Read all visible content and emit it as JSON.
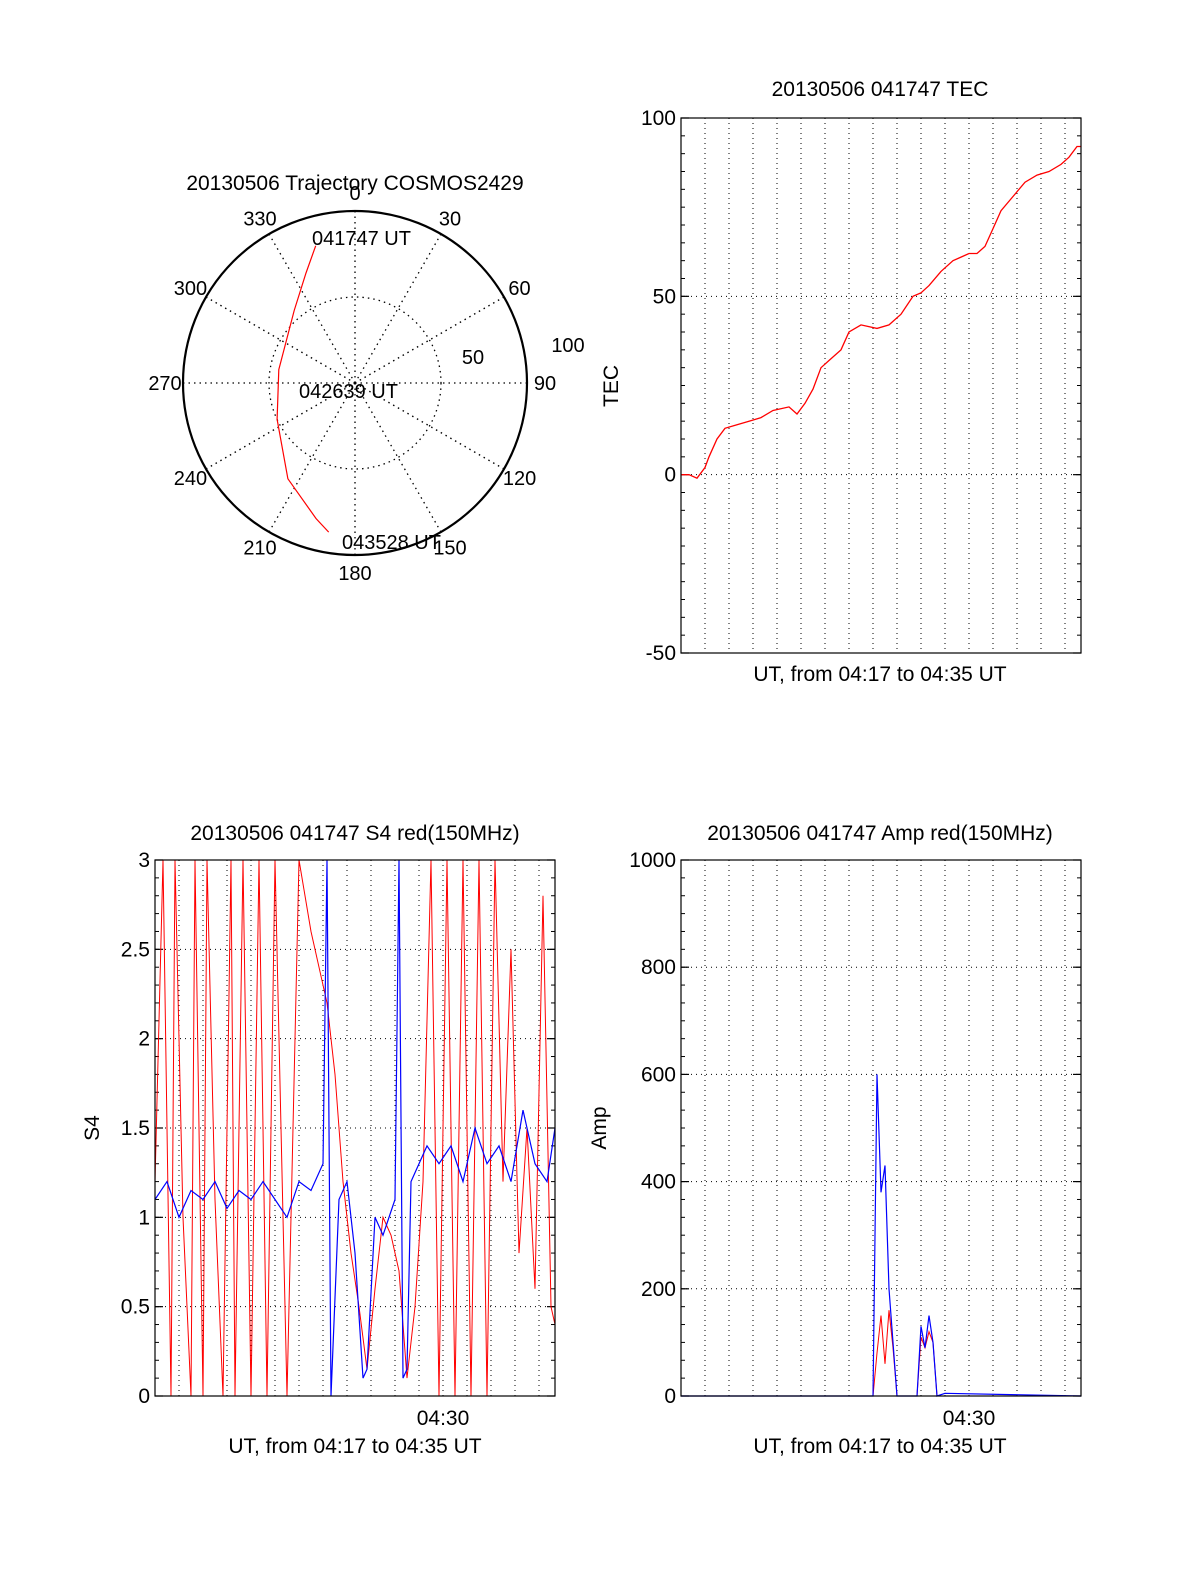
{
  "colors": {
    "series_a": "#ff0000",
    "series_b": "#0000ff",
    "axis": "#000000",
    "grid": "#000000",
    "background": "#ffffff"
  },
  "chart_data": [
    {
      "id": "trajectory",
      "type": "polar",
      "title": "20130506 Trajectory COSMOS2429",
      "angle_labels": [
        "0",
        "30",
        "60",
        "90",
        "120",
        "150",
        "180",
        "210",
        "240",
        "270",
        "300",
        "330"
      ],
      "angles_deg": [
        0,
        30,
        60,
        90,
        120,
        150,
        180,
        210,
        240,
        270,
        300,
        330
      ],
      "radial_labels": [
        "50",
        "100"
      ],
      "radial_values": [
        50,
        100
      ],
      "radial_max": 100,
      "annotations": [
        "041747 UT",
        "042639 UT",
        "043528 UT"
      ],
      "track": {
        "name": "COSMOS2429",
        "color": "#ff0000",
        "points": [
          {
            "az": 344,
            "r": 83
          },
          {
            "az": 336,
            "r": 70
          },
          {
            "az": 320,
            "r": 55
          },
          {
            "az": 280,
            "r": 45
          },
          {
            "az": 245,
            "r": 50
          },
          {
            "az": 215,
            "r": 68
          },
          {
            "az": 196,
            "r": 82
          },
          {
            "az": 190,
            "r": 88
          }
        ]
      }
    },
    {
      "id": "tec",
      "type": "line",
      "title": "20130506 041747 TEC",
      "xlabel": "UT, from 04:17 to 04:35 UT",
      "ylabel": "TEC",
      "ylim": [
        -50,
        100
      ],
      "yticks": [
        -50,
        0,
        50,
        100
      ],
      "ytick_labels": [
        "-50",
        "0",
        "50",
        "100"
      ],
      "xlim": [
        0,
        1
      ],
      "series": [
        {
          "name": "TEC",
          "color": "#ff0000",
          "x": [
            0.0,
            0.02,
            0.04,
            0.06,
            0.07,
            0.09,
            0.11,
            0.14,
            0.17,
            0.2,
            0.23,
            0.27,
            0.29,
            0.31,
            0.33,
            0.35,
            0.37,
            0.4,
            0.42,
            0.45,
            0.49,
            0.52,
            0.55,
            0.58,
            0.6,
            0.62,
            0.65,
            0.68,
            0.7,
            0.72,
            0.74,
            0.76,
            0.78,
            0.8,
            0.83,
            0.86,
            0.89,
            0.92,
            0.95,
            0.97,
            0.99,
            1.0
          ],
          "y": [
            0,
            0,
            -1,
            2,
            5,
            10,
            13,
            14,
            15,
            16,
            18,
            19,
            17,
            20,
            24,
            30,
            32,
            35,
            40,
            42,
            41,
            42,
            45,
            50,
            51,
            53,
            57,
            60,
            61,
            62,
            62,
            64,
            69,
            74,
            78,
            82,
            84,
            85,
            87,
            89,
            92,
            92
          ]
        }
      ]
    },
    {
      "id": "s4",
      "type": "line",
      "title": "20130506 041747 S4 red(150MHz)",
      "xlabel": "UT, from 04:17 to 04:35 UT",
      "ylabel": "S4",
      "ylim": [
        0,
        3
      ],
      "yticks": [
        0,
        0.5,
        1,
        1.5,
        2,
        2.5,
        3
      ],
      "ytick_labels": [
        "0",
        "0.5",
        "1",
        "1.5",
        "2",
        "2.5",
        "3"
      ],
      "xtick_label": "04:30",
      "xtick_pos": 0.72,
      "xlim": [
        0,
        1
      ],
      "series": [
        {
          "name": "S4 red",
          "color": "#ff0000",
          "x": [
            0.0,
            0.02,
            0.04,
            0.05,
            0.07,
            0.09,
            0.1,
            0.12,
            0.13,
            0.15,
            0.17,
            0.19,
            0.2,
            0.22,
            0.24,
            0.26,
            0.28,
            0.3,
            0.33,
            0.36,
            0.39,
            0.41,
            0.43,
            0.45,
            0.47,
            0.49,
            0.51,
            0.53,
            0.55,
            0.57,
            0.59,
            0.61,
            0.63,
            0.65,
            0.67,
            0.69,
            0.71,
            0.73,
            0.75,
            0.77,
            0.79,
            0.81,
            0.83,
            0.85,
            0.87,
            0.89,
            0.91,
            0.93,
            0.95,
            0.97,
            0.99,
            1.0
          ],
          "y": [
            1.2,
            3.0,
            0.0,
            3.0,
            1.0,
            0.0,
            3.0,
            0.0,
            3.0,
            1.1,
            0.0,
            3.0,
            0.0,
            3.0,
            0.0,
            3.0,
            0.0,
            3.0,
            0.0,
            3.0,
            2.6,
            2.4,
            2.2,
            1.8,
            1.2,
            0.8,
            0.5,
            0.15,
            0.6,
            1.0,
            0.9,
            0.7,
            0.1,
            0.5,
            1.2,
            3.0,
            0.0,
            3.0,
            0.0,
            3.0,
            0.0,
            3.0,
            0.0,
            3.0,
            1.2,
            2.5,
            0.8,
            1.5,
            0.6,
            2.8,
            0.5,
            0.4
          ]
        },
        {
          "name": "S4 blue",
          "color": "#0000ff",
          "x": [
            0.0,
            0.03,
            0.06,
            0.09,
            0.12,
            0.15,
            0.18,
            0.21,
            0.24,
            0.27,
            0.3,
            0.33,
            0.36,
            0.39,
            0.42,
            0.43,
            0.44,
            0.46,
            0.48,
            0.5,
            0.52,
            0.53,
            0.55,
            0.57,
            0.6,
            0.61,
            0.62,
            0.63,
            0.64,
            0.66,
            0.68,
            0.71,
            0.74,
            0.77,
            0.8,
            0.83,
            0.86,
            0.89,
            0.92,
            0.95,
            0.98,
            1.0
          ],
          "y": [
            1.1,
            1.2,
            1.0,
            1.15,
            1.1,
            1.2,
            1.05,
            1.15,
            1.1,
            1.2,
            1.1,
            1.0,
            1.2,
            1.15,
            1.3,
            3.0,
            0.0,
            1.1,
            1.2,
            0.8,
            0.1,
            0.15,
            1.0,
            0.9,
            1.1,
            3.0,
            0.1,
            0.15,
            1.2,
            1.3,
            1.4,
            1.3,
            1.4,
            1.2,
            1.5,
            1.3,
            1.4,
            1.2,
            1.6,
            1.3,
            1.2,
            1.5
          ]
        }
      ]
    },
    {
      "id": "amp",
      "type": "line",
      "title": "20130506 041747 Amp red(150MHz)",
      "xlabel": "UT, from 04:17 to 04:35 UT",
      "ylabel": "Amp",
      "ylim": [
        0,
        1000
      ],
      "yticks": [
        0,
        200,
        400,
        600,
        800,
        1000
      ],
      "ytick_labels": [
        "0",
        "200",
        "400",
        "600",
        "800",
        "1000"
      ],
      "xtick_label": "04:30",
      "xtick_pos": 0.72,
      "xlim": [
        0,
        1
      ],
      "series": [
        {
          "name": "Amp red",
          "color": "#ff0000",
          "x": [
            0.0,
            0.48,
            0.49,
            0.5,
            0.51,
            0.52,
            0.53,
            0.54,
            0.59,
            0.6,
            0.61,
            0.62,
            0.63,
            0.64,
            1.0
          ],
          "y": [
            0,
            0,
            80,
            150,
            60,
            160,
            90,
            0,
            0,
            110,
            90,
            120,
            100,
            0,
            0
          ]
        },
        {
          "name": "Amp blue",
          "color": "#0000ff",
          "x": [
            0.0,
            0.48,
            0.485,
            0.49,
            0.5,
            0.51,
            0.52,
            0.53,
            0.54,
            0.59,
            0.6,
            0.61,
            0.62,
            0.63,
            0.64,
            0.66,
            1.0
          ],
          "y": [
            0,
            0,
            300,
            600,
            380,
            430,
            200,
            100,
            0,
            0,
            130,
            90,
            150,
            100,
            0,
            5,
            0
          ]
        }
      ]
    }
  ]
}
